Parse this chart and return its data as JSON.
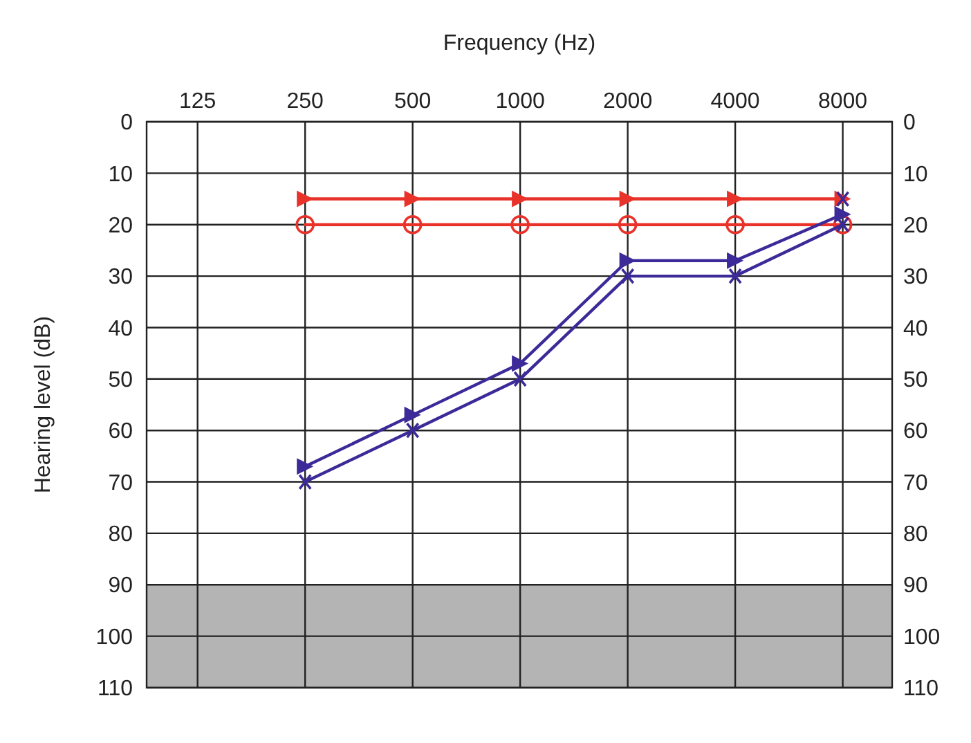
{
  "chart_data": {
    "type": "line",
    "xlabel": "Frequency (Hz)",
    "ylabel": "Hearing level (dB)",
    "log": "x",
    "grid": true,
    "xlim": [
      90,
      11000
    ],
    "xticks": [
      125,
      250,
      500,
      1000,
      2000,
      4000,
      8000
    ],
    "ylim": [
      110,
      0
    ],
    "yticks": [
      0,
      10,
      20,
      30,
      40,
      50,
      60,
      70,
      80,
      90,
      100,
      110
    ],
    "y2lim": [
      110,
      0
    ],
    "y2ticks": [
      0,
      10,
      20,
      30,
      40,
      50,
      60,
      70,
      80,
      90,
      100,
      110
    ],
    "bands": [
      {
        "axis": "y",
        "from": 90,
        "to": 110,
        "color": "#b4b4b4"
      }
    ],
    "series": [
      {
        "color": "#e8322a",
        "marker": "circle",
        "x": [
          250,
          500,
          1000,
          2000,
          4000,
          8000
        ],
        "values": [
          20,
          20,
          20,
          20,
          20,
          20
        ]
      },
      {
        "color": "#e8322a",
        "marker": "triangle",
        "x": [
          250,
          500,
          1000,
          2000,
          4000,
          8000
        ],
        "values": [
          15,
          15,
          15,
          15,
          15,
          15
        ]
      },
      {
        "color": "#3b2a98",
        "marker": "cross",
        "x": [
          250,
          500,
          1000,
          2000,
          4000,
          8000
        ],
        "values": [
          70,
          60,
          50,
          30,
          30,
          20
        ]
      },
      {
        "color": "#3b2a98",
        "marker": "triangle",
        "x": [
          250,
          500,
          1000,
          2000,
          4000,
          8000
        ],
        "values": [
          67,
          57,
          47,
          27,
          27,
          18
        ]
      },
      {
        "type": "scatter",
        "color": "#3b2a98",
        "marker": "cross",
        "x": [
          8000
        ],
        "values": [
          15
        ]
      }
    ]
  }
}
